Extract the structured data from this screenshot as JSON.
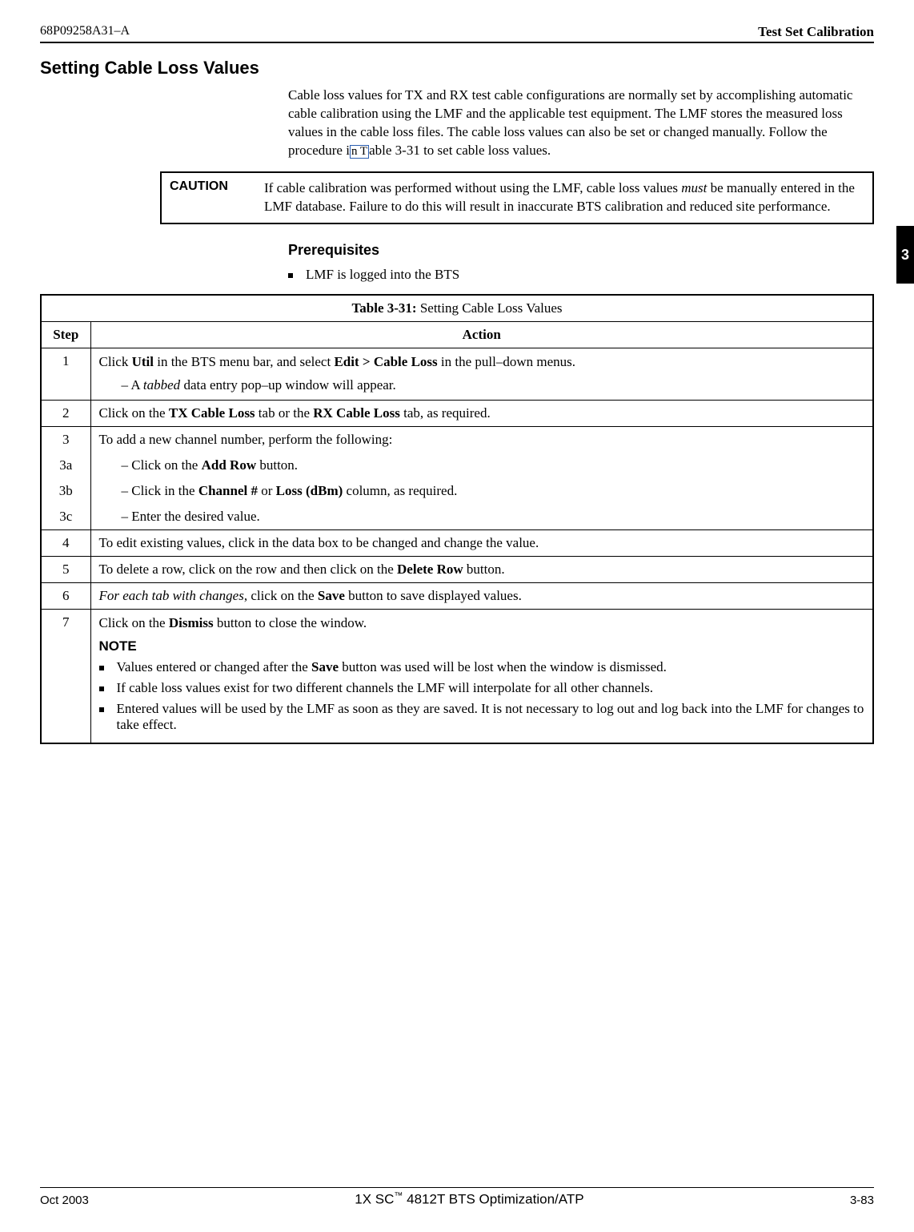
{
  "header": {
    "left": "68P09258A31–A",
    "right": "Test Set Calibration"
  },
  "section_title": "Setting Cable Loss Values",
  "intro_before_link": "Cable loss values for TX and RX test cable configurations are normally set by accomplishing automatic cable calibration using the LMF and the applicable test equipment. The LMF stores the measured loss values in the cable loss files. The cable loss values can also be set or changed manually. Follow the procedure i",
  "intro_link_text": "n T",
  "intro_after_link": "able 3-31 to set cable loss values.",
  "caution": {
    "label": "CAUTION",
    "text_before_italic": "If cable calibration was performed without using the LMF, cable loss values ",
    "italic": "must",
    "text_after_italic": " be manually entered in the LMF database. Failure to do this will result in inaccurate BTS calibration and reduced site performance."
  },
  "prereq_title": "Prerequisites",
  "prereq_item": "LMF is logged into the BTS",
  "tab_number": "3",
  "table": {
    "title_prefix": "Table 3-31:",
    "title_rest": " Setting Cable Loss Values",
    "col_step": "Step",
    "col_action": "Action",
    "rows": {
      "r1": {
        "step": "1",
        "line1_a": "Click ",
        "line1_b": "Util",
        "line1_c": " in the BTS menu bar, and select ",
        "line1_d": "Edit > Cable Loss",
        "line1_e": " in the pull–down menus.",
        "sub1_a": "A ",
        "sub1_b": "tabbed",
        "sub1_c": " data entry pop–up window will appear."
      },
      "r2": {
        "step": "2",
        "a": "Click on the ",
        "b": "TX Cable Loss",
        "c": " tab or the ",
        "d": "RX Cable Loss",
        "e": " tab, as required."
      },
      "r3": {
        "step": "3",
        "text": "To add a new channel number, perform the following:"
      },
      "r3a": {
        "step": "3a",
        "a": "Click on the ",
        "b": "Add Row",
        "c": " button."
      },
      "r3b": {
        "step": "3b",
        "a": "Click in the ",
        "b": "Channel #",
        "c": " or ",
        "d": "Loss (dBm)",
        "e": " column, as required."
      },
      "r3c": {
        "step": "3c",
        "text": "Enter the desired value."
      },
      "r4": {
        "step": "4",
        "text": "To edit existing values, click in the data box to be changed and change the value."
      },
      "r5": {
        "step": "5",
        "a": "To delete a row, click on the row and then click on the ",
        "b": "Delete Row",
        "c": " button."
      },
      "r6": {
        "step": "6",
        "a": "For each tab with changes",
        "b": ", click on the ",
        "c": "Save",
        "d": " button to save displayed values."
      },
      "r7": {
        "step": "7",
        "a": "Click on the ",
        "b": "Dismiss",
        "c": " button to close the window.",
        "note_label": "NOTE",
        "note1_a": "Values entered or changed after the ",
        "note1_b": "Save",
        "note1_c": " button was used will be lost when the window is dismissed.",
        "note2": "If cable loss values exist for two different channels the LMF will interpolate for all other channels.",
        "note3": "Entered values will be used by the LMF as soon as they are saved. It is not necessary to log out and log back into the LMF for changes to take effect."
      }
    }
  },
  "footer": {
    "left": "Oct 2003",
    "center_a": "1X SC",
    "center_b": "  4812T BTS Optimization/ATP",
    "right": "3-83"
  }
}
